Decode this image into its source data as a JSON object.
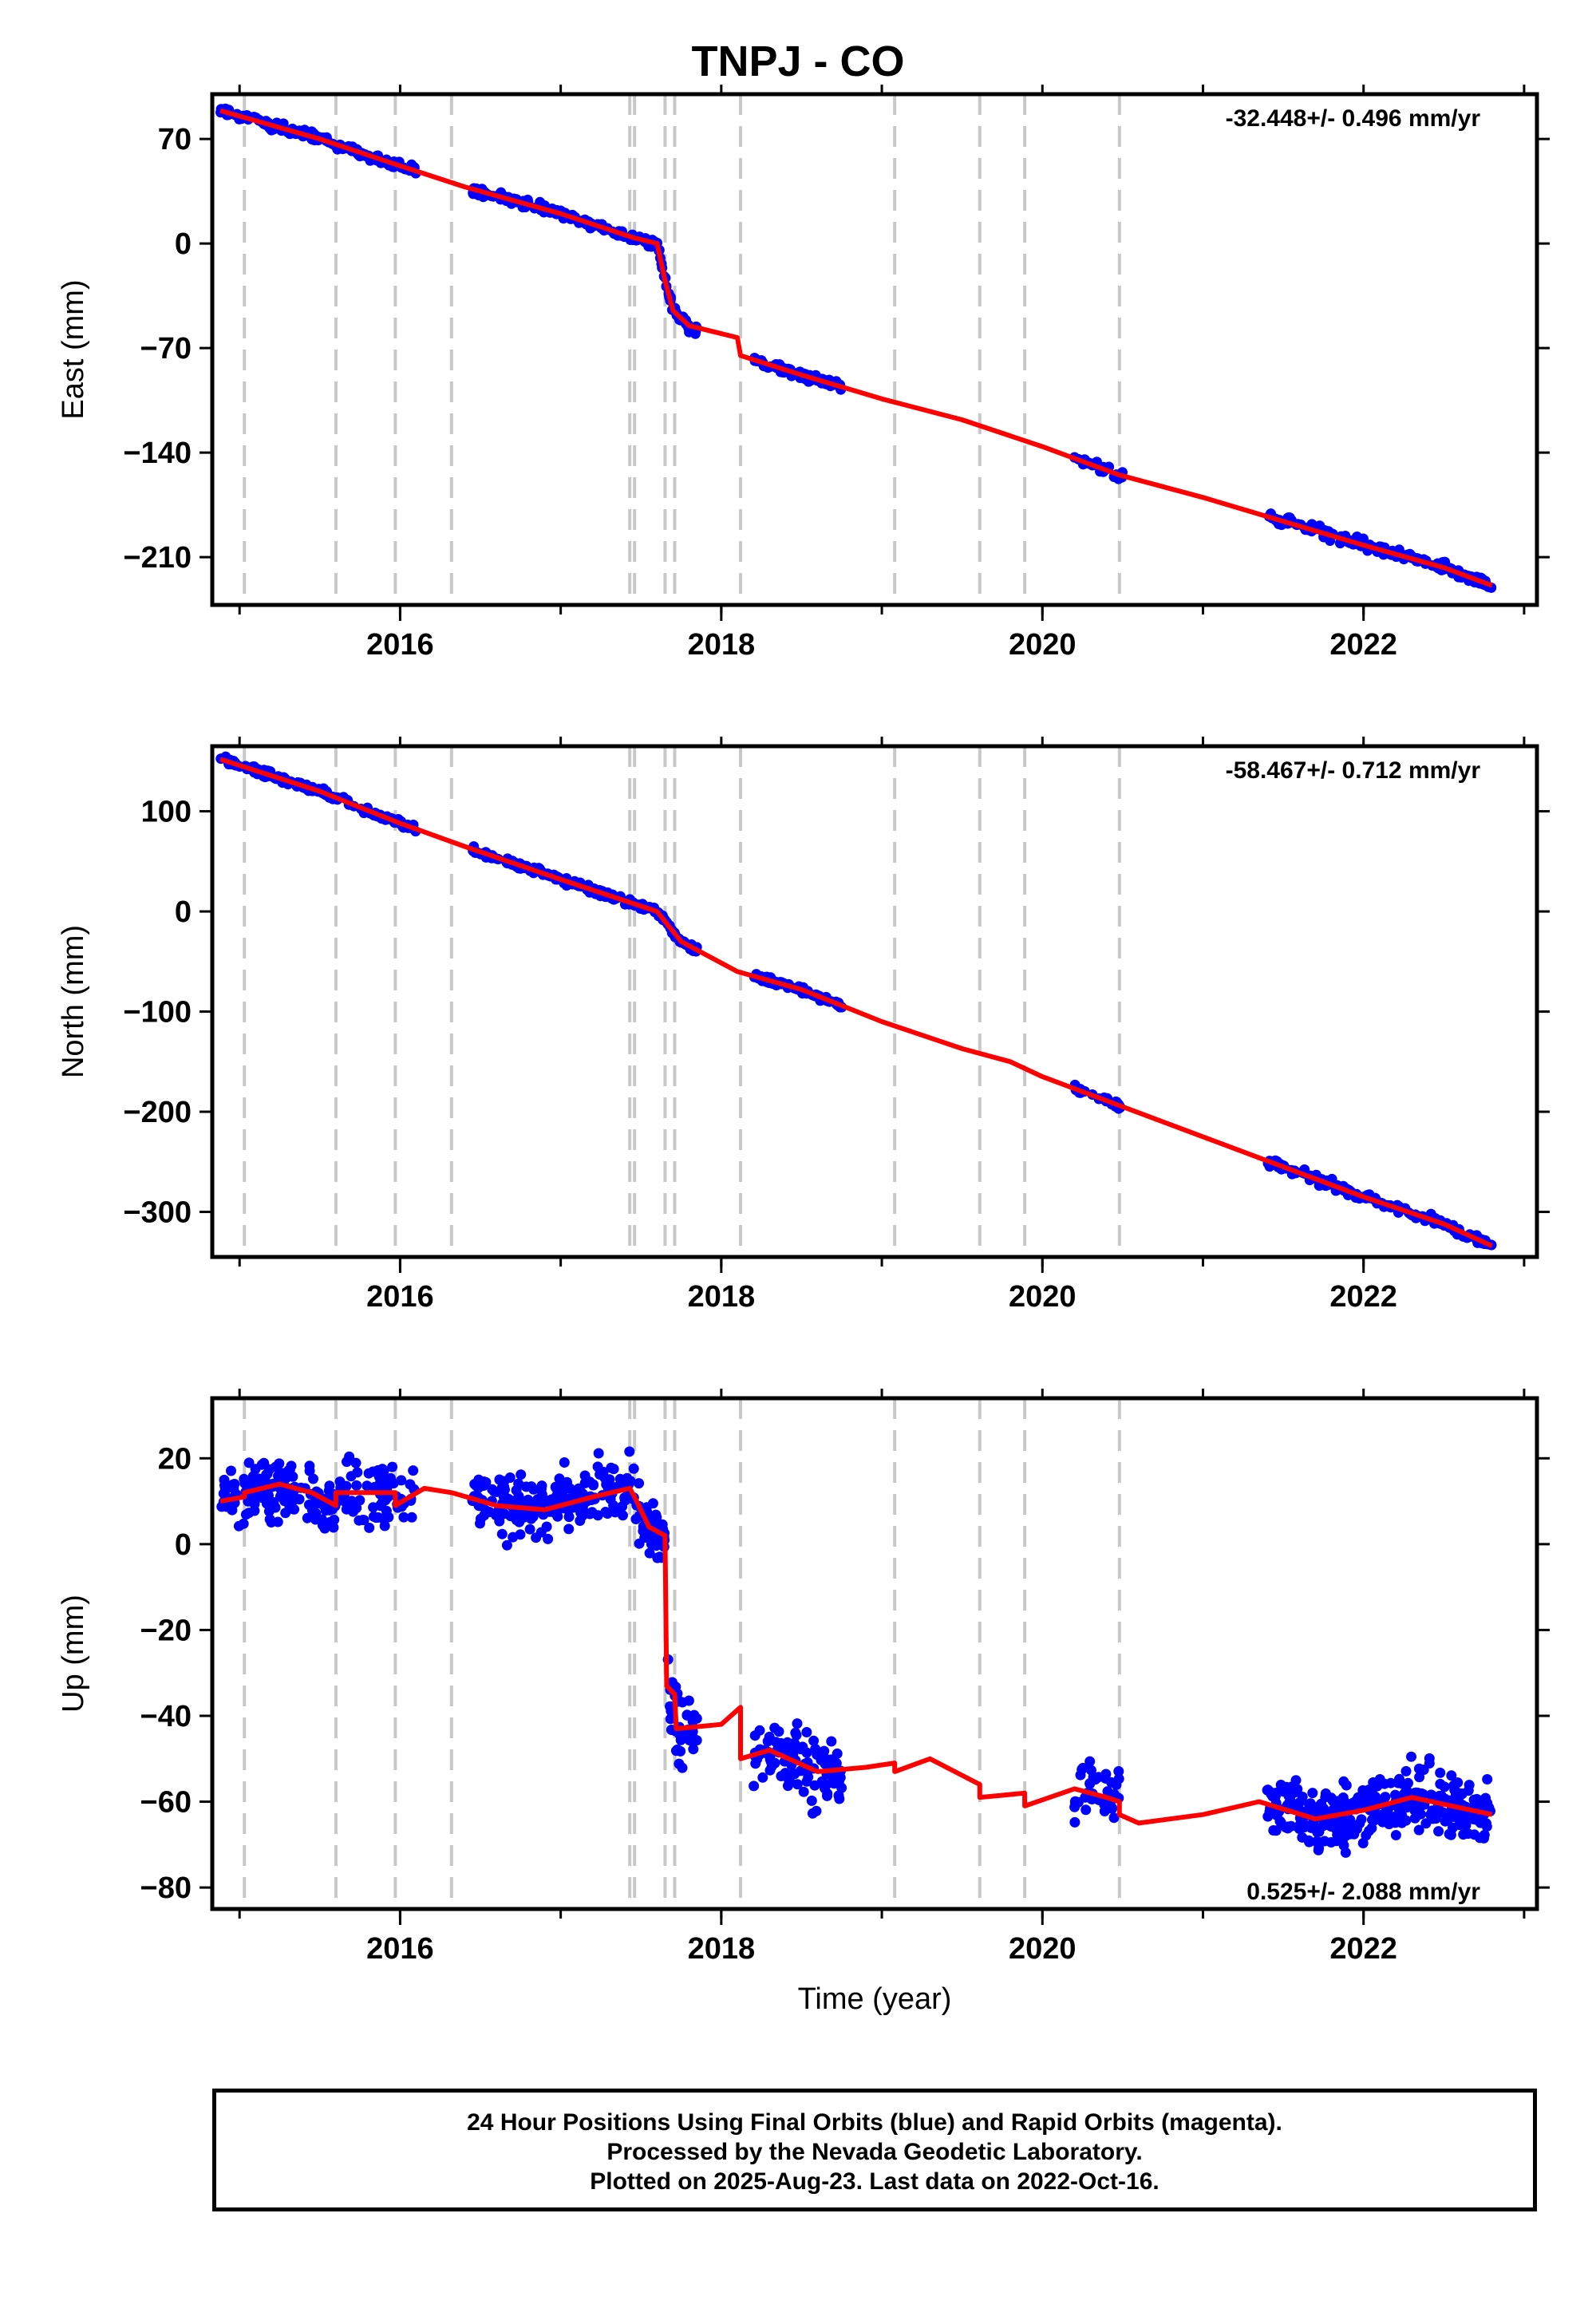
{
  "title": "TNPJ - CO",
  "xlabel": "Time (year)",
  "footer": {
    "line1": "24 Hour Positions Using Final Orbits (blue) and Rapid Orbits (magenta).",
    "line2": "Processed by the Nevada Geodetic Laboratory.",
    "line3": "Plotted on 2025-Aug-23. Last data on 2022-Oct-16."
  },
  "colors": {
    "points": "#0000ff",
    "model": "#ff0000",
    "events": "#c8c8c8",
    "axes": "#000000"
  },
  "x_tick_labels": [
    "2016",
    "2018",
    "2020",
    "2022"
  ],
  "chart_data": [
    {
      "type": "scatter",
      "component": "East",
      "ylabel": "East (mm)",
      "rate": "-32.448+/- 0.496 mm/yr",
      "xlim": [
        2014.83,
        2023.08
      ],
      "ylim": [
        -242,
        100
      ],
      "x_ticks": [
        2016,
        2018,
        2020,
        2022
      ],
      "x_minor_ticks": [
        2015,
        2016,
        2017,
        2018,
        2019,
        2020,
        2021,
        2022,
        2023
      ],
      "y_ticks": [
        70,
        0,
        -70,
        -140,
        -210
      ],
      "y_tick_labels": [
        "70",
        "0",
        "−70",
        "−140",
        "−210"
      ],
      "event_lines": [
        2015.03,
        2015.6,
        2015.97,
        2016.32,
        2017.43,
        2017.46,
        2017.65,
        2017.71,
        2018.12,
        2019.08,
        2019.61,
        2019.89,
        2020.48
      ],
      "model": [
        [
          2014.88,
          89
        ],
        [
          2015.5,
          70
        ],
        [
          2016.0,
          52
        ],
        [
          2016.4,
          38
        ],
        [
          2017.0,
          20
        ],
        [
          2017.45,
          4
        ],
        [
          2017.6,
          0
        ],
        [
          2017.65,
          -25
        ],
        [
          2017.7,
          -45
        ],
        [
          2017.8,
          -55
        ],
        [
          2018.1,
          -63
        ],
        [
          2018.12,
          -75
        ],
        [
          2018.5,
          -88
        ],
        [
          2019.0,
          -104
        ],
        [
          2019.5,
          -118
        ],
        [
          2020.0,
          -136
        ],
        [
          2020.48,
          -155
        ],
        [
          2021.0,
          -170
        ],
        [
          2021.5,
          -186
        ],
        [
          2022.0,
          -202
        ],
        [
          2022.5,
          -217
        ],
        [
          2022.8,
          -229
        ]
      ],
      "point_segments": [
        {
          "range": [
            2014.88,
            2016.1
          ],
          "noise": 2.5,
          "count": 150
        },
        {
          "range": [
            2016.45,
            2017.65
          ],
          "noise": 2.5,
          "count": 150
        },
        {
          "range": [
            2017.65,
            2017.85
          ],
          "noise": 3,
          "count": 40
        },
        {
          "range": [
            2018.2,
            2018.75
          ],
          "noise": 2.5,
          "count": 70
        },
        {
          "range": [
            2020.2,
            2020.5
          ],
          "noise": 2.5,
          "count": 30
        },
        {
          "range": [
            2021.4,
            2022.8
          ],
          "noise": 3,
          "count": 180
        }
      ]
    },
    {
      "type": "scatter",
      "component": "North",
      "ylabel": "North (mm)",
      "rate": "-58.467+/- 0.712 mm/yr",
      "xlim": [
        2014.83,
        2023.08
      ],
      "ylim": [
        -345,
        165
      ],
      "x_ticks": [
        2016,
        2018,
        2020,
        2022
      ],
      "x_minor_ticks": [
        2015,
        2016,
        2017,
        2018,
        2019,
        2020,
        2021,
        2022,
        2023
      ],
      "y_ticks": [
        100,
        0,
        -100,
        -200,
        -300
      ],
      "y_tick_labels": [
        "100",
        "0",
        "−100",
        "−200",
        "−300"
      ],
      "event_lines": [
        2015.03,
        2015.6,
        2015.97,
        2016.32,
        2017.43,
        2017.46,
        2017.65,
        2017.71,
        2018.12,
        2019.08,
        2019.61,
        2019.89,
        2020.48
      ],
      "model": [
        [
          2014.88,
          152
        ],
        [
          2015.5,
          120
        ],
        [
          2016.0,
          88
        ],
        [
          2016.4,
          65
        ],
        [
          2017.0,
          32
        ],
        [
          2017.45,
          8
        ],
        [
          2017.6,
          0
        ],
        [
          2017.75,
          -30
        ],
        [
          2018.1,
          -60
        ],
        [
          2018.5,
          -78
        ],
        [
          2019.0,
          -110
        ],
        [
          2019.5,
          -137
        ],
        [
          2019.8,
          -150
        ],
        [
          2020.0,
          -165
        ],
        [
          2020.5,
          -195
        ],
        [
          2021.0,
          -225
        ],
        [
          2021.5,
          -255
        ],
        [
          2022.0,
          -285
        ],
        [
          2022.5,
          -312
        ],
        [
          2022.8,
          -334
        ]
      ],
      "point_segments": [
        {
          "range": [
            2014.88,
            2016.1
          ],
          "noise": 3,
          "count": 150
        },
        {
          "range": [
            2016.45,
            2017.65
          ],
          "noise": 3,
          "count": 150
        },
        {
          "range": [
            2017.65,
            2017.85
          ],
          "noise": 3,
          "count": 40
        },
        {
          "range": [
            2018.2,
            2018.75
          ],
          "noise": 3,
          "count": 70
        },
        {
          "range": [
            2020.2,
            2020.5
          ],
          "noise": 3,
          "count": 30
        },
        {
          "range": [
            2021.4,
            2022.8
          ],
          "noise": 3.5,
          "count": 180
        }
      ]
    },
    {
      "type": "scatter",
      "component": "Up",
      "ylabel": "Up (mm)",
      "rate": "0.525+/- 2.088 mm/yr",
      "xlim": [
        2014.83,
        2023.08
      ],
      "ylim": [
        -85,
        34
      ],
      "x_ticks": [
        2016,
        2018,
        2020,
        2022
      ],
      "x_minor_ticks": [
        2015,
        2016,
        2017,
        2018,
        2019,
        2020,
        2021,
        2022,
        2023
      ],
      "y_ticks": [
        20,
        0,
        -20,
        -40,
        -60,
        -80
      ],
      "y_tick_labels": [
        "20",
        "0",
        "−20",
        "−40",
        "−60",
        "−80"
      ],
      "event_lines": [
        2015.03,
        2015.6,
        2015.97,
        2016.32,
        2017.43,
        2017.46,
        2017.65,
        2017.71,
        2018.12,
        2019.08,
        2019.61,
        2019.89,
        2020.48
      ],
      "model": [
        [
          2014.88,
          10
        ],
        [
          2015.03,
          11
        ],
        [
          2015.03,
          12
        ],
        [
          2015.25,
          14
        ],
        [
          2015.45,
          12
        ],
        [
          2015.6,
          9
        ],
        [
          2015.6,
          12
        ],
        [
          2015.97,
          12
        ],
        [
          2015.97,
          9
        ],
        [
          2016.15,
          13
        ],
        [
          2016.32,
          12
        ],
        [
          2016.6,
          9
        ],
        [
          2016.9,
          8
        ],
        [
          2017.2,
          11
        ],
        [
          2017.43,
          13
        ],
        [
          2017.46,
          11
        ],
        [
          2017.55,
          4
        ],
        [
          2017.65,
          2
        ],
        [
          2017.66,
          -33
        ],
        [
          2017.71,
          -35
        ],
        [
          2017.72,
          -43
        ],
        [
          2018.0,
          -42
        ],
        [
          2018.12,
          -38
        ],
        [
          2018.12,
          -50
        ],
        [
          2018.3,
          -48
        ],
        [
          2018.6,
          -53
        ],
        [
          2018.9,
          -52
        ],
        [
          2019.08,
          -51
        ],
        [
          2019.08,
          -53
        ],
        [
          2019.3,
          -50
        ],
        [
          2019.61,
          -56
        ],
        [
          2019.61,
          -59
        ],
        [
          2019.89,
          -58
        ],
        [
          2019.89,
          -61
        ],
        [
          2020.2,
          -57
        ],
        [
          2020.4,
          -59
        ],
        [
          2020.48,
          -60
        ],
        [
          2020.48,
          -63
        ],
        [
          2020.6,
          -65
        ],
        [
          2021.0,
          -63
        ],
        [
          2021.35,
          -60
        ],
        [
          2021.7,
          -64
        ],
        [
          2022.0,
          -62
        ],
        [
          2022.3,
          -59
        ],
        [
          2022.55,
          -61
        ],
        [
          2022.8,
          -63
        ]
      ],
      "point_segments": [
        {
          "range": [
            2014.88,
            2016.1
          ],
          "noise": 6,
          "count": 220
        },
        {
          "range": [
            2016.45,
            2017.6
          ],
          "noise": 6,
          "count": 220
        },
        {
          "range": [
            2017.6,
            2017.85
          ],
          "noise": 7,
          "count": 50
        },
        {
          "range": [
            2018.2,
            2018.75
          ],
          "noise": 7,
          "count": 110
        },
        {
          "range": [
            2020.2,
            2020.5
          ],
          "noise": 7,
          "count": 45
        },
        {
          "range": [
            2021.4,
            2022.8
          ],
          "noise": 6,
          "count": 350
        }
      ]
    }
  ]
}
